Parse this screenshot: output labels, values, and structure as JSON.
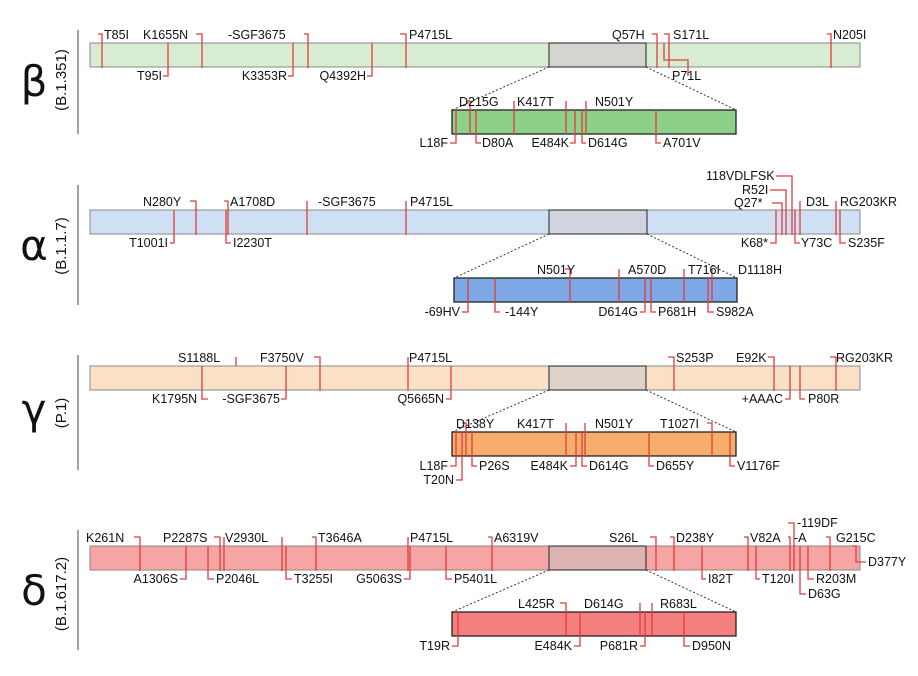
{
  "variants": [
    {
      "greek": "β",
      "lineage": "(B.1.351)",
      "genome_color": "#d8ecd3",
      "spike_color": "#8dd08a",
      "highlight_color": "#d2d6cf",
      "genome_top": [
        "T85I",
        "K1655N",
        "-SGF3675",
        "P4715L",
        "Q57H",
        "S171L",
        "N205I"
      ],
      "genome_bottom": [
        "T95I",
        "K3353R",
        "Q4392H",
        "P71L"
      ],
      "spike_top": [
        "D215G",
        "K417T",
        "N501Y"
      ],
      "spike_bottom": [
        "L18F",
        "D80A",
        "E484K",
        "D614G",
        "A701V"
      ]
    },
    {
      "greek": "α",
      "lineage": "(B.1.1.7)",
      "genome_color": "#cfe0f5",
      "spike_color": "#7fa9e6",
      "highlight_color": "#cfd4de",
      "genome_top": [
        "N280Y",
        "A1708D",
        "-SGF3675",
        "P4715L",
        "118VDLFSK",
        "R52I",
        "Q27*",
        "D3L",
        "RG203KR"
      ],
      "genome_bottom": [
        "T1001I",
        "I2230T",
        "K68*",
        "Y73C",
        "S235F"
      ],
      "spike_top": [
        "N501Y",
        "A570D",
        "T716I",
        "D1118H"
      ],
      "spike_bottom": [
        "-69HV",
        "-144Y",
        "D614G",
        "P681H",
        "S982A"
      ]
    },
    {
      "greek": "γ",
      "lineage": "(P.1)",
      "genome_color": "#fbe0c8",
      "spike_color": "#f7ad6b",
      "highlight_color": "#ddd2c8",
      "genome_top": [
        "S1188L",
        "F3750V",
        "P4715L",
        "S253P",
        "E92K",
        "RG203KR"
      ],
      "genome_bottom": [
        "K1795N",
        "-SGF3675",
        "Q5665N",
        "+AAAC",
        "P80R"
      ],
      "spike_top": [
        "D138Y",
        "K417T",
        "N501Y",
        "T1027I"
      ],
      "spike_bottom": [
        "L18F",
        "T20N",
        "P26S",
        "E484K",
        "D614G",
        "D655Y",
        "V1176F"
      ]
    },
    {
      "greek": "δ",
      "lineage": "(B.1.617.2)",
      "genome_color": "#f6a5a5",
      "spike_color": "#f37f7f",
      "highlight_color": "#dbb3b1",
      "genome_top": [
        "K261N",
        "P2287S",
        "V2930L",
        "T3646A",
        "P4715L",
        "A6319V",
        "S26L",
        "D238Y",
        "V82A",
        "-119DF",
        "-A",
        "G215C",
        "D377Y"
      ],
      "genome_bottom": [
        "A1306S",
        "P2046L",
        "T3255I",
        "G5063S",
        "P5401L",
        "I82T",
        "T120I",
        "R203M",
        "D63G"
      ],
      "spike_top": [
        "L425R",
        "D614G",
        "R683L"
      ],
      "spike_bottom": [
        "T19R",
        "E484K",
        "P681R",
        "D950N"
      ]
    }
  ]
}
